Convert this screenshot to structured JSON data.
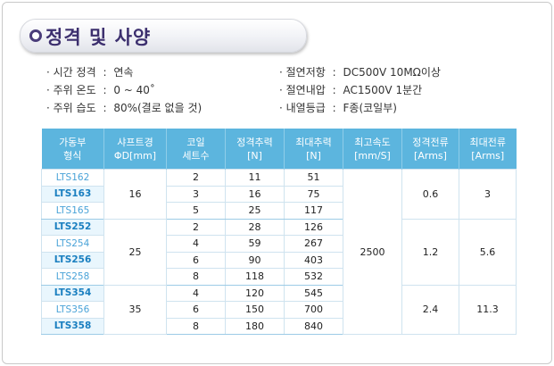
{
  "title": "정격 및 사양",
  "specs_left": [
    {
      "label": "· 시간 정격",
      "sep": ":",
      "value": "연속"
    },
    {
      "label": "· 주위 온도",
      "sep": ":",
      "value": "0 ~ 40˚"
    },
    {
      "label": "· 주위 습도",
      "sep": ":",
      "value": "80%(결로 없을 것)"
    }
  ],
  "specs_right": [
    {
      "label": "· 절연저항",
      "sep": ":",
      "value": "DC500V 10MΩ이상"
    },
    {
      "label": "· 절연내압",
      "sep": ":",
      "value": "AC1500V 1분간"
    },
    {
      "label": "· 내열등급",
      "sep": ":",
      "value": "F종(코일부)"
    }
  ],
  "table": {
    "headers": [
      [
        "가동부",
        "형식"
      ],
      [
        "샤프트경",
        "ΦD[mm]"
      ],
      [
        "코일",
        "세트수"
      ],
      [
        "정격추력",
        "[N]"
      ],
      [
        "최대추력",
        "[N]"
      ],
      [
        "최고속도",
        "[mm/S]"
      ],
      [
        "정격전류",
        "[Arms]"
      ],
      [
        "최대전류",
        "[Arms]"
      ]
    ],
    "models": [
      "LTS162",
      "LTS163",
      "LTS165",
      "LTS252",
      "LTS254",
      "LTS256",
      "LTS258",
      "LTS354",
      "LTS356",
      "LTS358"
    ],
    "coil_sets": [
      "2",
      "3",
      "5",
      "2",
      "4",
      "6",
      "8",
      "4",
      "6",
      "8"
    ],
    "rated_thrust": [
      "11",
      "16",
      "25",
      "28",
      "59",
      "90",
      "118",
      "120",
      "150",
      "180"
    ],
    "max_thrust": [
      "51",
      "75",
      "117",
      "126",
      "267",
      "403",
      "532",
      "545",
      "700",
      "840"
    ],
    "shaft_diameter": {
      "g1": "16",
      "g2": "25",
      "g3": "35"
    },
    "max_speed": "2500",
    "rated_current": {
      "g1": "0.6",
      "g2": "1.2",
      "g3": "2.4"
    },
    "max_current": {
      "g1": "3",
      "g2": "5.6",
      "g3": "11.3"
    }
  }
}
